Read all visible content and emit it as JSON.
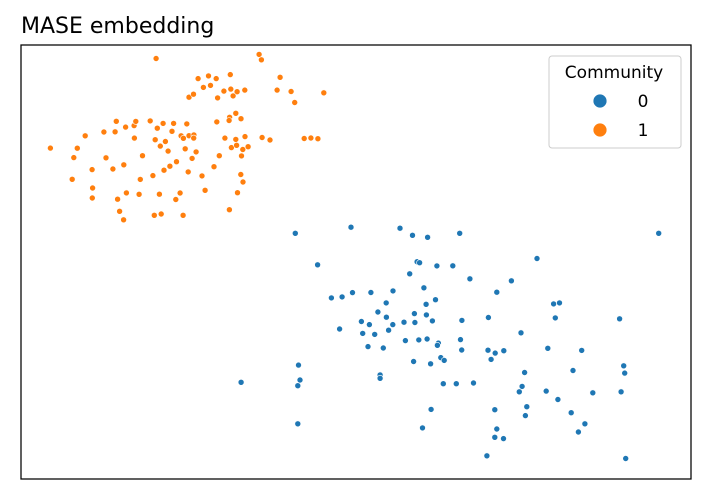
{
  "chart_data": {
    "type": "scatter",
    "title": "MASE embedding",
    "xlabel": "",
    "ylabel": "",
    "xlim": [
      0,
      1
    ],
    "ylim": [
      0,
      1
    ],
    "axis_ticks": "none",
    "grid": false,
    "legend": {
      "title": "Community",
      "placement": "top-right"
    },
    "series": [
      {
        "name": "0",
        "color": "#1f77b4",
        "points": [
          [
            0.4094,
            0.5662
          ],
          [
            0.4926,
            0.5801
          ],
          [
            0.5657,
            0.5778
          ],
          [
            0.5844,
            0.5616
          ],
          [
            0.6068,
            0.5569
          ],
          [
            0.6548,
            0.5662
          ],
          [
            0.9518,
            0.5662
          ],
          [
            0.4427,
            0.4935
          ],
          [
            0.5912,
            0.5007
          ],
          [
            0.5949,
            0.4984
          ],
          [
            0.6208,
            0.4909
          ],
          [
            0.6445,
            0.4913
          ],
          [
            0.7702,
            0.5081
          ],
          [
            0.5801,
            0.4729
          ],
          [
            0.67,
            0.4613
          ],
          [
            0.732,
            0.4566
          ],
          [
            0.4633,
            0.4173
          ],
          [
            0.4792,
            0.4197
          ],
          [
            0.4948,
            0.4294
          ],
          [
            0.5223,
            0.4298
          ],
          [
            0.5552,
            0.4335
          ],
          [
            0.6013,
            0.4405
          ],
          [
            0.6186,
            0.4132
          ],
          [
            0.5451,
            0.4058
          ],
          [
            0.6047,
            0.4025
          ],
          [
            0.7101,
            0.4303
          ],
          [
            0.795,
            0.4035
          ],
          [
            0.8037,
            0.4058
          ],
          [
            0.5327,
            0.3849
          ],
          [
            0.5454,
            0.3729
          ],
          [
            0.5871,
            0.3812
          ],
          [
            0.6051,
            0.378
          ],
          [
            0.5081,
            0.3628
          ],
          [
            0.52,
            0.3558
          ],
          [
            0.5486,
            0.3428
          ],
          [
            0.5549,
            0.3558
          ],
          [
            0.5716,
            0.3614
          ],
          [
            0.5879,
            0.3605
          ],
          [
            0.6141,
            0.3642
          ],
          [
            0.6581,
            0.3655
          ],
          [
            0.6976,
            0.3721
          ],
          [
            0.7463,
            0.3368
          ],
          [
            0.7975,
            0.3711
          ],
          [
            0.8934,
            0.3692
          ],
          [
            0.4755,
            0.3457
          ],
          [
            0.51,
            0.3354
          ],
          [
            0.5279,
            0.3331
          ],
          [
            0.5737,
            0.3188
          ],
          [
            0.5938,
            0.3205
          ],
          [
            0.6061,
            0.3225
          ],
          [
            0.623,
            0.3132
          ],
          [
            0.656,
            0.3212
          ],
          [
            0.5179,
            0.305
          ],
          [
            0.5408,
            0.3019
          ],
          [
            0.6215,
            0.3081
          ],
          [
            0.6578,
            0.2972
          ],
          [
            0.697,
            0.2968
          ],
          [
            0.7077,
            0.2901
          ],
          [
            0.7206,
            0.2957
          ],
          [
            0.7862,
            0.3011
          ],
          [
            0.8368,
            0.2964
          ],
          [
            0.6265,
            0.2798
          ],
          [
            0.7016,
            0.2755
          ],
          [
            0.586,
            0.2708
          ],
          [
            0.6113,
            0.2655
          ],
          [
            0.6316,
            0.2732
          ],
          [
            0.8996,
            0.2608
          ],
          [
            0.4142,
            0.2624
          ],
          [
            0.7516,
            0.2454
          ],
          [
            0.8239,
            0.25
          ],
          [
            0.536,
            0.2398
          ],
          [
            0.536,
            0.232
          ],
          [
            0.4164,
            0.2281
          ],
          [
            0.3285,
            0.2227
          ],
          [
            0.4131,
            0.2149
          ],
          [
            0.6303,
            0.2196
          ],
          [
            0.6497,
            0.2196
          ],
          [
            0.6753,
            0.2211
          ],
          [
            0.7479,
            0.2134
          ],
          [
            0.7839,
            0.2026
          ],
          [
            0.8534,
            0.1987
          ],
          [
            0.8956,
            0.201
          ],
          [
            0.9011,
            0.244
          ],
          [
            0.7438,
            0.201
          ],
          [
            0.8013,
            0.1832
          ],
          [
            0.7549,
            0.1666
          ],
          [
            0.7072,
            0.1596
          ],
          [
            0.6121,
            0.1603
          ],
          [
            0.8212,
            0.1527
          ],
          [
            0.7528,
            0.146
          ],
          [
            0.4131,
            0.1271
          ],
          [
            0.5993,
            0.1178
          ],
          [
            0.8416,
            0.1271
          ],
          [
            0.7101,
            0.1151
          ],
          [
            0.832,
            0.1083
          ],
          [
            0.7072,
            0.0961
          ],
          [
            0.7202,
            0.093
          ],
          [
            0.6953,
            0.0535
          ],
          [
            0.9026,
            0.0473
          ]
        ]
      },
      {
        "name": "1",
        "color": "#ff7f0e",
        "points": [
          [
            0.2016,
            0.969
          ],
          [
            0.3554,
            0.9783
          ],
          [
            0.3588,
            0.9659
          ],
          [
            0.3124,
            0.9319
          ],
          [
            0.3867,
            0.9256
          ],
          [
            0.2643,
            0.9226
          ],
          [
            0.2799,
            0.9287
          ],
          [
            0.2914,
            0.9226
          ],
          [
            0.2723,
            0.9022
          ],
          [
            0.2828,
            0.907
          ],
          [
            0.3029,
            0.8938
          ],
          [
            0.3131,
            0.8985
          ],
          [
            0.3225,
            0.8924
          ],
          [
            0.334,
            0.8961
          ],
          [
            0.3822,
            0.896
          ],
          [
            0.4032,
            0.8929
          ],
          [
            0.4519,
            0.8898
          ],
          [
            0.2507,
            0.8797
          ],
          [
            0.2575,
            0.8867
          ],
          [
            0.2934,
            0.8782
          ],
          [
            0.3165,
            0.8828
          ],
          [
            0.4085,
            0.8674
          ],
          [
            0.3113,
            0.8333
          ],
          [
            0.3206,
            0.8426
          ],
          [
            0.1422,
            0.8241
          ],
          [
            0.1561,
            0.8108
          ],
          [
            0.1688,
            0.8143
          ],
          [
            0.1714,
            0.824
          ],
          [
            0.1928,
            0.8252
          ],
          [
            0.2121,
            0.8193
          ],
          [
            0.2277,
            0.8194
          ],
          [
            0.2474,
            0.8183
          ],
          [
            0.2923,
            0.8228
          ],
          [
            0.3106,
            0.826
          ],
          [
            0.3284,
            0.8301
          ],
          [
            0.0958,
            0.7908
          ],
          [
            0.1238,
            0.7996
          ],
          [
            0.1405,
            0.8001
          ],
          [
            0.2035,
            0.8082
          ],
          [
            0.2253,
            0.8011
          ],
          [
            0.239,
            0.7908
          ],
          [
            0.2508,
            0.7911
          ],
          [
            0.258,
            0.7929
          ],
          [
            0.1692,
            0.7854
          ],
          [
            0.2003,
            0.7819
          ],
          [
            0.2155,
            0.7777
          ],
          [
            0.2424,
            0.785
          ],
          [
            0.2577,
            0.7855
          ],
          [
            0.3043,
            0.7854
          ],
          [
            0.3206,
            0.7824
          ],
          [
            0.3343,
            0.7889
          ],
          [
            0.3599,
            0.7868
          ],
          [
            0.3717,
            0.7811
          ],
          [
            0.4227,
            0.7845
          ],
          [
            0.4327,
            0.7856
          ],
          [
            0.4432,
            0.7841
          ],
          [
            0.2079,
            0.767
          ],
          [
            0.2451,
            0.7609
          ],
          [
            0.3141,
            0.7636
          ],
          [
            0.3218,
            0.769
          ],
          [
            0.3389,
            0.7656
          ],
          [
            0.0439,
            0.7624
          ],
          [
            0.0841,
            0.7622
          ],
          [
            0.2195,
            0.7556
          ],
          [
            0.2614,
            0.7537
          ],
          [
            0.3311,
            0.7593
          ],
          [
            0.0788,
            0.7406
          ],
          [
            0.1268,
            0.7402
          ],
          [
            0.1813,
            0.7449
          ],
          [
            0.2321,
            0.731
          ],
          [
            0.2554,
            0.7388
          ],
          [
            0.296,
            0.7449
          ],
          [
            0.3291,
            0.7445
          ],
          [
            0.1535,
            0.724
          ],
          [
            0.2222,
            0.7208
          ],
          [
            0.1061,
            0.7128
          ],
          [
            0.1371,
            0.7143
          ],
          [
            0.2135,
            0.7116
          ],
          [
            0.2496,
            0.7077
          ],
          [
            0.288,
            0.7197
          ],
          [
            0.2702,
            0.6984
          ],
          [
            0.3281,
            0.7016
          ],
          [
            0.0764,
            0.6906
          ],
          [
            0.178,
            0.6903
          ],
          [
            0.1968,
            0.6991
          ],
          [
            0.3313,
            0.6844
          ],
          [
            0.1068,
            0.6704
          ],
          [
            0.1573,
            0.6593
          ],
          [
            0.1762,
            0.6559
          ],
          [
            0.2065,
            0.6562
          ],
          [
            0.2374,
            0.6591
          ],
          [
            0.2748,
            0.6652
          ],
          [
            0.3232,
            0.6597
          ],
          [
            0.1064,
            0.6474
          ],
          [
            0.1442,
            0.6448
          ],
          [
            0.2311,
            0.644
          ],
          [
            0.311,
            0.6205
          ],
          [
            0.1471,
            0.6169
          ],
          [
            0.199,
            0.6076
          ],
          [
            0.2093,
            0.6107
          ],
          [
            0.242,
            0.6076
          ],
          [
            0.1531,
            0.5972
          ]
        ]
      }
    ]
  }
}
